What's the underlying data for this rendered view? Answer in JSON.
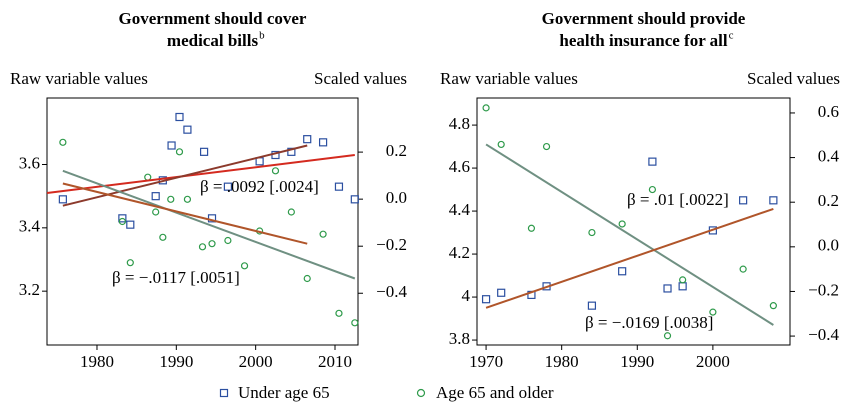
{
  "chart_data": [
    {
      "type": "scatter",
      "title": [
        "Government should cover",
        "medical bills"
      ],
      "title_superscript": "b",
      "ylabel": "Raw variable values",
      "y2label": "Scaled values",
      "xlim": [
        1973.7,
        2012.9
      ],
      "xticks": [
        1980,
        1990,
        2000,
        2010
      ],
      "ylim": [
        3.03,
        3.81
      ],
      "yticks": [
        3.2,
        3.4,
        3.6
      ],
      "y2lim": [
        -0.62,
        0.43
      ],
      "y2ticks": [
        {
          "value": -0.4,
          "label": "−0.4"
        },
        {
          "value": -0.2,
          "label": "−0.2"
        },
        {
          "value": 0,
          "label": "0.0"
        },
        {
          "value": 0.2,
          "label": "0.2"
        }
      ],
      "series": [
        {
          "name": "Under age 65",
          "color": "#2b4fa0",
          "marker": "square",
          "x": [
            1975.7,
            1983.2,
            1984.2,
            1987.4,
            1988.3,
            1989.4,
            1990.4,
            1991.4,
            1993.5,
            1994.5,
            1996.5,
            2000.5,
            2002.5,
            2004.5,
            2006.5,
            2008.5,
            2010.5,
            2012.5
          ],
          "values": [
            3.49,
            3.43,
            3.41,
            3.5,
            3.55,
            3.66,
            3.75,
            3.71,
            3.64,
            3.43,
            3.53,
            3.61,
            3.63,
            3.64,
            3.68,
            3.67,
            3.53,
            3.49
          ]
        },
        {
          "name": "Age 65 and older",
          "color": "#2e9a4a",
          "marker": "circle",
          "x": [
            1975.7,
            1983.2,
            1984.2,
            1986.4,
            1987.4,
            1988.3,
            1989.3,
            1990.4,
            1991.4,
            1993.3,
            1994.5,
            1996.5,
            1998.6,
            2000.5,
            2002.5,
            2004.5,
            2006.5,
            2008.5,
            2010.5,
            2012.5
          ],
          "values": [
            3.67,
            3.42,
            3.29,
            3.56,
            3.45,
            3.37,
            3.49,
            3.64,
            3.49,
            3.34,
            3.35,
            3.36,
            3.28,
            3.39,
            3.58,
            3.45,
            3.24,
            3.38,
            3.13,
            3.1
          ]
        }
      ],
      "fit_lines": [
        {
          "color": "#d42a1f",
          "x": [
            1973.7,
            2012.5
          ],
          "values": [
            3.51,
            3.63
          ]
        },
        {
          "color": "#8c3a2c",
          "x": [
            1975.7,
            2006.5
          ],
          "values": [
            3.47,
            3.66
          ]
        },
        {
          "color": "#6f9082",
          "x": [
            1975.7,
            2012.5
          ],
          "values": [
            3.58,
            3.24
          ]
        },
        {
          "color": "#b0552a",
          "x": [
            1975.7,
            2006.5
          ],
          "values": [
            3.54,
            3.35
          ]
        }
      ],
      "annotations": [
        "β = .0092 [.0024]",
        "β = −.0117 [.0051]"
      ]
    },
    {
      "type": "scatter",
      "title": [
        "Government should provide",
        "health insurance for all"
      ],
      "title_superscript": "c",
      "ylabel": "Raw variable values",
      "y2label": "Scaled values",
      "xlim": [
        1968.8,
        2010.2
      ],
      "xticks": [
        1970,
        1980,
        1990,
        2000
      ],
      "ylim": [
        3.777,
        4.926
      ],
      "yticks": [
        3.8,
        4,
        4.2,
        4.4,
        4.6,
        4.8
      ],
      "y2lim": [
        -0.44,
        0.667
      ],
      "y2ticks": [
        {
          "value": -0.4,
          "label": "−0.4"
        },
        {
          "value": -0.2,
          "label": "−0.2"
        },
        {
          "value": 0,
          "label": "0.0"
        },
        {
          "value": 0.2,
          "label": "0.2"
        },
        {
          "value": 0.4,
          "label": "0.4"
        },
        {
          "value": 0.6,
          "label": "0.6"
        }
      ],
      "series": [
        {
          "name": "Under age 65",
          "color": "#2b4fa0",
          "marker": "square",
          "x": [
            1970,
            1972,
            1976,
            1978,
            1984,
            1988,
            1992,
            1994,
            1996,
            2000,
            2004,
            2008
          ],
          "values": [
            3.99,
            4.02,
            4.01,
            4.05,
            3.96,
            4.12,
            4.63,
            4.04,
            4.05,
            4.31,
            4.45,
            4.45
          ]
        },
        {
          "name": "Age 65 and older",
          "color": "#2e9a4a",
          "marker": "circle",
          "x": [
            1970,
            1972,
            1976,
            1978,
            1984,
            1988,
            1992,
            1994,
            1996,
            2000,
            2004,
            2008
          ],
          "values": [
            4.88,
            4.71,
            4.32,
            4.7,
            4.3,
            4.34,
            4.5,
            3.82,
            4.08,
            3.93,
            4.13,
            3.96
          ]
        }
      ],
      "fit_lines": [
        {
          "color": "#6f9082",
          "x": [
            1970,
            2008
          ],
          "values": [
            4.71,
            3.87
          ]
        },
        {
          "color": "#b0552a",
          "x": [
            1970,
            2008
          ],
          "values": [
            3.95,
            4.41
          ]
        }
      ],
      "annotations": [
        "β = .01 [.0022]",
        "β = −.0169 [.0038]"
      ]
    }
  ]
}
